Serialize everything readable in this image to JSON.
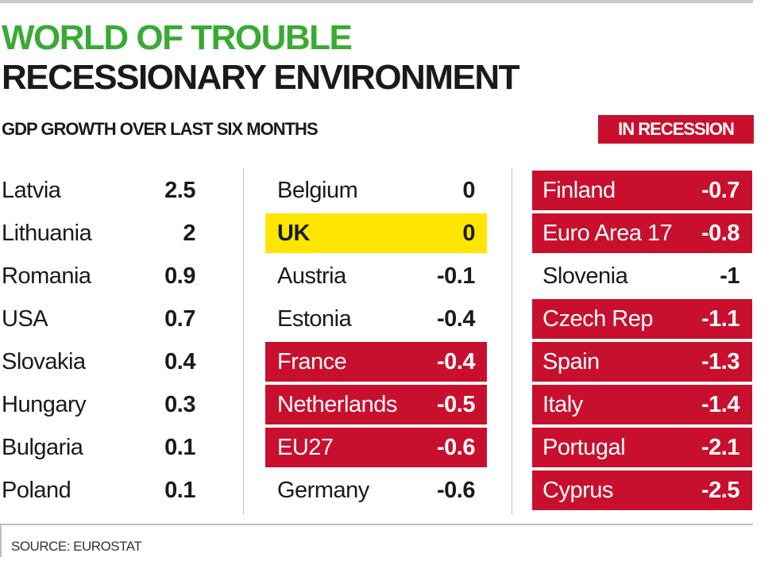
{
  "header": {
    "kicker": "WORLD OF TROUBLE",
    "title": "RECESSIONARY ENVIRONMENT",
    "subtitle": "GDP GROWTH OVER LAST SIX MONTHS",
    "legend_label": "IN RECESSION"
  },
  "source": "SOURCE: EUROSTAT",
  "colors": {
    "kicker": "#3aaa35",
    "recession": "#c8102e",
    "uk_highlight": "#ffe500"
  },
  "chart_data": {
    "type": "table",
    "title": "RECESSIONARY ENVIRONMENT",
    "columns": [
      [
        {
          "country": "Latvia",
          "value": "2.5",
          "status": "none"
        },
        {
          "country": "Lithuania",
          "value": "2",
          "status": "none"
        },
        {
          "country": "Romania",
          "value": "0.9",
          "status": "none"
        },
        {
          "country": "USA",
          "value": "0.7",
          "status": "none"
        },
        {
          "country": "Slovakia",
          "value": "0.4",
          "status": "none"
        },
        {
          "country": "Hungary",
          "value": "0.3",
          "status": "none"
        },
        {
          "country": "Bulgaria",
          "value": "0.1",
          "status": "none"
        },
        {
          "country": "Poland",
          "value": "0.1",
          "status": "none"
        }
      ],
      [
        {
          "country": "Belgium",
          "value": "0",
          "status": "none"
        },
        {
          "country": "UK",
          "value": "0",
          "status": "highlight"
        },
        {
          "country": "Austria",
          "value": "-0.1",
          "status": "none"
        },
        {
          "country": "Estonia",
          "value": "-0.4",
          "status": "none"
        },
        {
          "country": "France",
          "value": "-0.4",
          "status": "recession"
        },
        {
          "country": "Netherlands",
          "value": "-0.5",
          "status": "recession"
        },
        {
          "country": "EU27",
          "value": "-0.6",
          "status": "recession"
        },
        {
          "country": "Germany",
          "value": "-0.6",
          "status": "none"
        }
      ],
      [
        {
          "country": "Finland",
          "value": "-0.7",
          "status": "recession"
        },
        {
          "country": "Euro Area 17",
          "value": "-0.8",
          "status": "recession"
        },
        {
          "country": "Slovenia",
          "value": "-1",
          "status": "none"
        },
        {
          "country": "Czech Rep",
          "value": "-1.1",
          "status": "recession"
        },
        {
          "country": "Spain",
          "value": "-1.3",
          "status": "recession"
        },
        {
          "country": "Italy",
          "value": "-1.4",
          "status": "recession"
        },
        {
          "country": "Portugal",
          "value": "-2.1",
          "status": "recession"
        },
        {
          "country": "Cyprus",
          "value": "-2.5",
          "status": "recession"
        }
      ]
    ]
  }
}
